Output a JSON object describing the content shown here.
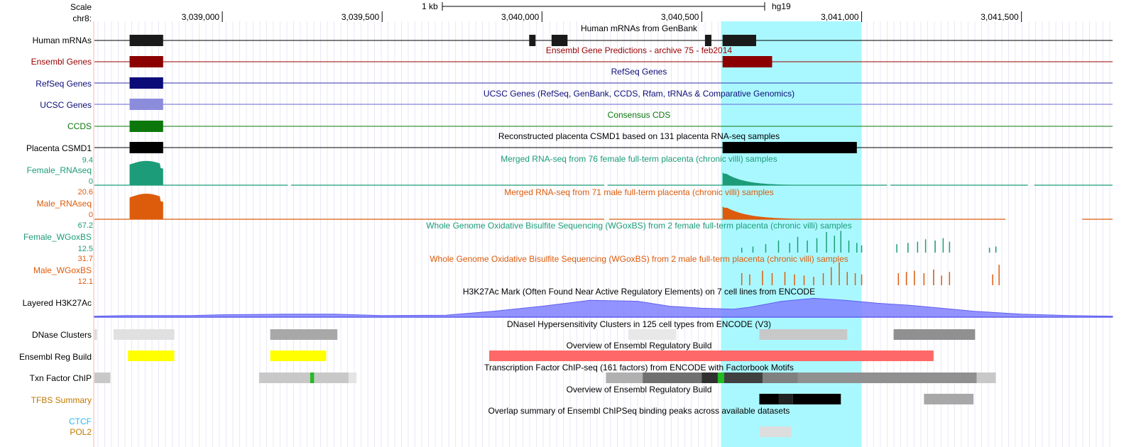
{
  "assembly": "hg19",
  "scale_bar": {
    "label": "Scale",
    "size_label": "1 kb"
  },
  "chrom_label": "chr8:",
  "ruler": {
    "start_bp": 3038600,
    "end_bp": 3041785,
    "ticks": [
      {
        "pos": 3039000,
        "label": "3,039,000"
      },
      {
        "pos": 3039500,
        "label": "3,039,500"
      },
      {
        "pos": 3040000,
        "label": "3,040,000"
      },
      {
        "pos": 3040500,
        "label": "3,040,500"
      },
      {
        "pos": 3041000,
        "label": "3,041,000"
      },
      {
        "pos": 3041500,
        "label": "3,041,500"
      }
    ]
  },
  "highlight": {
    "start_bp": 3040560,
    "end_bp": 3041000,
    "color": "#aaf8ff"
  },
  "colors": {
    "black": "#000000",
    "ensembl": "#990000",
    "refseq": "#0c0c78",
    "ucsc": "#3333cc",
    "ucsc_box": "#8c8cdc",
    "ccds": "#0c780c",
    "female": "#1c9c78",
    "male": "#dc5c0c",
    "h3k27ac": "#8080ff",
    "reg_build_yellow": "#ffff00",
    "reg_build_red": "#ff6868",
    "ctcf": "#22bbee",
    "tfbs": "#c07800",
    "pol2": "#c07800",
    "txn_green": "#22bb22"
  },
  "tracks": [
    {
      "id": "human-mrnas",
      "label": "Human mRNAs",
      "label_color": "#000000",
      "title": "Human mRNAs from GenBank",
      "title_color": "#000000",
      "kind": "gene",
      "line_color": "#000000",
      "box_color": "#1a1a1a",
      "boxes": [
        [
          3038710,
          3038815
        ],
        [
          3039960,
          3039980
        ],
        [
          3040030,
          3040080
        ],
        [
          3040510,
          3040530
        ],
        [
          3040565,
          3040670
        ]
      ],
      "line_range": [
        3038600,
        3041785
      ]
    },
    {
      "id": "ensembl-genes",
      "label": "Ensembl Genes",
      "label_color": "#990000",
      "title": "Ensembl Gene Predictions - archive 75 - feb2014",
      "title_color": "#990000",
      "kind": "gene",
      "line_color": "#990000",
      "box_color": "#8b0000",
      "boxes": [
        [
          3038710,
          3038815
        ],
        [
          3040565,
          3040720
        ]
      ],
      "line_range": [
        3038600,
        3041785
      ]
    },
    {
      "id": "refseq-genes",
      "label": "RefSeq Genes",
      "label_color": "#0c0c78",
      "title": "RefSeq Genes",
      "title_color": "#0c0c78",
      "kind": "gene",
      "line_color": "#3333aa",
      "box_color": "#0c0c78",
      "boxes": [
        [
          3038710,
          3038815
        ]
      ],
      "line_range": [
        3038600,
        3041785
      ]
    },
    {
      "id": "ucsc-genes",
      "label": "UCSC Genes",
      "label_color": "#0c0c78",
      "title": "UCSC Genes (RefSeq, GenBank, CCDS, Rfam, tRNAs & Comparative Genomics)",
      "title_color": "#0c0c78",
      "kind": "gene",
      "line_color": "#6666cc",
      "box_color": "#8c8cdc",
      "boxes": [
        [
          3038710,
          3038815
        ]
      ],
      "line_range": [
        3038600,
        3041785
      ]
    },
    {
      "id": "ccds",
      "label": "CCDS",
      "label_color": "#0c780c",
      "title": "Consensus CDS",
      "title_color": "#0c780c",
      "kind": "gene",
      "line_color": "#0c780c",
      "box_color": "#0c780c",
      "boxes": [
        [
          3038710,
          3038815
        ]
      ],
      "line_range": [
        3038600,
        3041785
      ]
    },
    {
      "id": "placenta-csmd1",
      "label": "Placenta CSMD1",
      "label_color": "#000000",
      "title": "Reconstructed placenta CSMD1 based on 131 placenta RNA-seq samples",
      "title_color": "#000000",
      "kind": "gene",
      "line_color": "#000000",
      "box_color": "#000000",
      "boxes": [
        [
          3038710,
          3038815
        ],
        [
          3040565,
          3040985
        ]
      ],
      "line_range": [
        3038600,
        3041785
      ]
    },
    {
      "id": "female-rnaseq",
      "label": "Female_RNAseq",
      "label_color": "#1c9c78",
      "title": "Merged RNA-seq from 76 female full-term placenta (chronic villi) samples",
      "title_color": "#1c9c78",
      "kind": "signal",
      "color": "#1c9c78",
      "scale_max": "9.4",
      "scale_min": "0",
      "peaks": [
        {
          "start": 3038710,
          "end": 3038815,
          "shape": "block",
          "height": 0.95
        },
        {
          "start": 3040565,
          "end": 3040800,
          "shape": "decay",
          "height": 0.55
        }
      ],
      "baseline_gaps": [
        [
          3039205,
          3039215
        ],
        [
          3040195,
          3040205
        ],
        [
          3041080,
          3041090
        ],
        [
          3041520,
          3041540
        ]
      ]
    },
    {
      "id": "male-rnaseq",
      "label": "Male_RNAseq",
      "label_color": "#dc5c0c",
      "title": "Merged RNA-seq from 71 male full-term placenta (chronic villi) samples",
      "title_color": "#dc5c0c",
      "kind": "signal",
      "color": "#dc5c0c",
      "scale_max": "20.6",
      "scale_min": "0",
      "peaks": [
        {
          "start": 3038710,
          "end": 3038815,
          "shape": "block",
          "height": 1.0
        },
        {
          "start": 3040565,
          "end": 3040840,
          "shape": "decay",
          "height": 0.55
        }
      ],
      "baseline_gaps": [
        [
          3040195,
          3040210
        ],
        [
          3041450,
          3041690
        ]
      ]
    },
    {
      "id": "female-wgoxbs",
      "label": "Female_WGoxBS",
      "label_color": "#1c9c78",
      "title": "Whole Genome Oxidative Bisulfite Sequencing (WGoxBS) from 2 female full-term placenta (chronic villi) samples",
      "title_color": "#1c9c78",
      "kind": "bars",
      "color": "#1c9c78",
      "scale_max": "67.2",
      "scale_min": "12.5",
      "bars": [
        [
          3040625,
          0.2
        ],
        [
          3040660,
          0.25
        ],
        [
          3040700,
          0.35
        ],
        [
          3040740,
          0.5
        ],
        [
          3040775,
          0.4
        ],
        [
          3040800,
          0.65
        ],
        [
          3040830,
          0.5
        ],
        [
          3040860,
          0.6
        ],
        [
          3040890,
          0.85
        ],
        [
          3040915,
          0.7
        ],
        [
          3040935,
          0.9
        ],
        [
          3040960,
          0.5
        ],
        [
          3040985,
          0.4
        ],
        [
          3041000,
          0.3
        ],
        [
          3041110,
          0.35
        ],
        [
          3041145,
          0.4
        ],
        [
          3041175,
          0.45
        ],
        [
          3041200,
          0.55
        ],
        [
          3041230,
          0.5
        ],
        [
          3041255,
          0.6
        ],
        [
          3041275,
          0.45
        ],
        [
          3041400,
          0.2
        ],
        [
          3041420,
          0.25
        ]
      ]
    },
    {
      "id": "male-wgoxbs",
      "label": "Male_WGoxBS",
      "label_color": "#dc5c0c",
      "title": "Whole Genome Oxidative Bisulfite Sequencing (WGoxBS) from 2 male full-term placenta (chronic villi) samples",
      "title_color": "#dc5c0c",
      "kind": "bars",
      "color": "#dc5c0c",
      "scale_max": "31.7",
      "scale_min": "12.1",
      "bars": [
        [
          3040625,
          0.5
        ],
        [
          3040650,
          0.45
        ],
        [
          3040690,
          0.6
        ],
        [
          3040720,
          0.5
        ],
        [
          3040760,
          0.55
        ],
        [
          3040790,
          0.45
        ],
        [
          3040820,
          0.4
        ],
        [
          3040850,
          0.35
        ],
        [
          3040880,
          0.5
        ],
        [
          3040905,
          0.75
        ],
        [
          3040930,
          0.95
        ],
        [
          3040955,
          0.55
        ],
        [
          3040980,
          0.5
        ],
        [
          3041000,
          0.45
        ],
        [
          3041115,
          0.5
        ],
        [
          3041140,
          0.55
        ],
        [
          3041165,
          0.6
        ],
        [
          3041195,
          0.5
        ],
        [
          3041225,
          0.65
        ],
        [
          3041250,
          0.4
        ],
        [
          3041275,
          0.55
        ],
        [
          3041410,
          0.45
        ],
        [
          3041430,
          0.85
        ]
      ]
    },
    {
      "id": "layered-h3k27ac",
      "label": "Layered H3K27Ac",
      "label_color": "#000000",
      "title": "H3K27Ac Mark (Often Found Near Active Regulatory Elements) on 7 cell lines from ENCODE",
      "title_color": "#000000",
      "kind": "layered",
      "color": "#8080ff",
      "profile": [
        [
          3038600,
          0.05
        ],
        [
          3038700,
          0.08
        ],
        [
          3038900,
          0.08
        ],
        [
          3039000,
          0.12
        ],
        [
          3039200,
          0.15
        ],
        [
          3039350,
          0.15
        ],
        [
          3039500,
          0.08
        ],
        [
          3039700,
          0.1
        ],
        [
          3039850,
          0.3
        ],
        [
          3040000,
          0.55
        ],
        [
          3040150,
          0.85
        ],
        [
          3040300,
          0.8
        ],
        [
          3040400,
          0.55
        ],
        [
          3040500,
          0.45
        ],
        [
          3040600,
          0.4
        ],
        [
          3040650,
          0.5
        ],
        [
          3040750,
          0.8
        ],
        [
          3040850,
          0.95
        ],
        [
          3040950,
          0.85
        ],
        [
          3041050,
          0.7
        ],
        [
          3041150,
          0.6
        ],
        [
          3041250,
          0.45
        ],
        [
          3041350,
          0.3
        ],
        [
          3041500,
          0.15
        ],
        [
          3041650,
          0.08
        ],
        [
          3041785,
          0.05
        ]
      ]
    },
    {
      "id": "dnase-clusters",
      "label": "DNase Clusters",
      "label_color": "#000000",
      "title": "DNaseI Hypersensitivity Clusters in 125 cell types from ENCODE (V3)",
      "title_color": "#000000",
      "kind": "blocks",
      "blocks": [
        [
          3038600,
          3038608,
          "#dddddd"
        ],
        [
          3038660,
          3038850,
          "#e0e0e0"
        ],
        [
          3039150,
          3039360,
          "#a8a8a8"
        ],
        [
          3040270,
          3040420,
          "#e8e8e8"
        ],
        [
          3040680,
          3040955,
          "#c8c8c8"
        ],
        [
          3041100,
          3041355,
          "#909090"
        ]
      ]
    },
    {
      "id": "ensembl-reg-build",
      "label": "Ensembl Reg Build",
      "label_color": "#000000",
      "title": "Overview of Ensembl Regulatory Build",
      "title_color": "#000000",
      "kind": "blocks",
      "blocks": [
        [
          3038705,
          3038850,
          "#ffff00"
        ],
        [
          3039150,
          3039325,
          "#ffff00"
        ],
        [
          3039835,
          3041225,
          "#ff6868"
        ]
      ]
    },
    {
      "id": "txn-factor-chip",
      "label": "Txn Factor ChIP",
      "label_color": "#000000",
      "title": "Transcription Factor ChIP-seq (161 factors) from ENCODE with Factorbook Motifs",
      "title_color": "#000000",
      "kind": "blocks",
      "blocks": [
        [
          3038600,
          3038650,
          "#c8c8c8"
        ],
        [
          3039115,
          3039395,
          "#c8c8c8"
        ],
        [
          3039395,
          3039420,
          "#e4e4e4"
        ],
        [
          3039275,
          3039287,
          "#22bb22"
        ],
        [
          3040200,
          3040315,
          "#b0b0b0"
        ],
        [
          3040315,
          3040500,
          "#707070"
        ],
        [
          3040500,
          3040550,
          "#303030"
        ],
        [
          3040550,
          3040570,
          "#22bb22"
        ],
        [
          3040570,
          3040690,
          "#404040"
        ],
        [
          3040690,
          3040800,
          "#808080"
        ],
        [
          3040800,
          3041360,
          "#909090"
        ],
        [
          3041360,
          3041420,
          "#c8c8c8"
        ]
      ]
    },
    {
      "id": "tfbs-summary",
      "label": "TFBS Summary",
      "label_color": "#c07800",
      "title": "Overview of Ensembl Regulatory Build",
      "title_color": "#000000",
      "kind": "blocks",
      "blocks": [
        [
          3040680,
          3040740,
          "#000000"
        ],
        [
          3040740,
          3040785,
          "#222222"
        ],
        [
          3040785,
          3040935,
          "#000000"
        ],
        [
          3041195,
          3041350,
          "#a8a8a8"
        ]
      ]
    },
    {
      "id": "ctcf",
      "label": "CTCF",
      "label_color": "#22bbee",
      "title": "Overlap summary of Ensembl ChIPSeq binding peaks across available datasets",
      "title_color": "#000000",
      "kind": "blocks",
      "blocks": []
    },
    {
      "id": "pol2",
      "label": "POL2",
      "label_color": "#c07800",
      "title": "",
      "title_color": "#000000",
      "kind": "blocks",
      "blocks": [
        [
          3040680,
          3040780,
          "#dddddd"
        ]
      ]
    }
  ]
}
